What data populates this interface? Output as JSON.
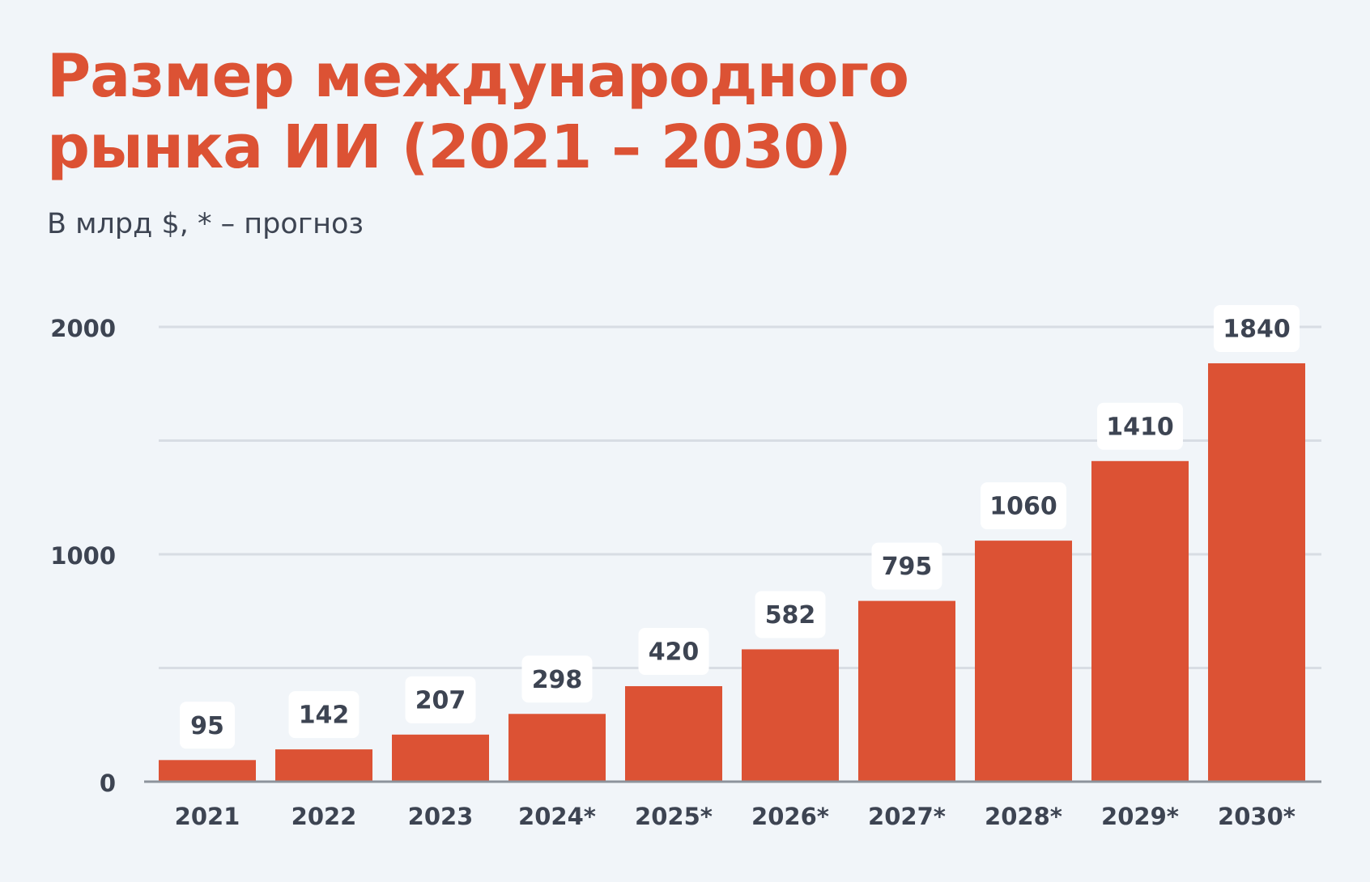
{
  "title": {
    "line1": "Размер международного",
    "line2": "рынка ИИ (2021 – 2030)"
  },
  "subtitle": "В млрд $, * – прогноз",
  "colors": {
    "background": "#f1f5f9",
    "accent": "#dc5234",
    "bar": "#dc5234",
    "text": "#3d4452",
    "gridline": "#d8dde4",
    "axis": "#8d939c",
    "label_box": "#ffffff"
  },
  "chart_data": {
    "type": "bar",
    "categories": [
      "2021",
      "2022",
      "2023",
      "2024*",
      "2025*",
      "2026*",
      "2027*",
      "2028*",
      "2029*",
      "2030*"
    ],
    "values": [
      95,
      142,
      207,
      298,
      420,
      582,
      795,
      1060,
      1410,
      1840
    ],
    "data_labels": [
      "95",
      "142",
      "207",
      "298",
      "420",
      "582",
      "795",
      "1060",
      "1410",
      "1840"
    ],
    "ylim": [
      0,
      2000
    ],
    "yticks": [
      0,
      1000,
      2000
    ],
    "ytick_labels": [
      "0",
      "1000",
      "2000"
    ],
    "gridlines": [
      500,
      1000,
      1500,
      2000
    ],
    "grid": true,
    "xlabel": "",
    "ylabel": "",
    "legend": false
  }
}
